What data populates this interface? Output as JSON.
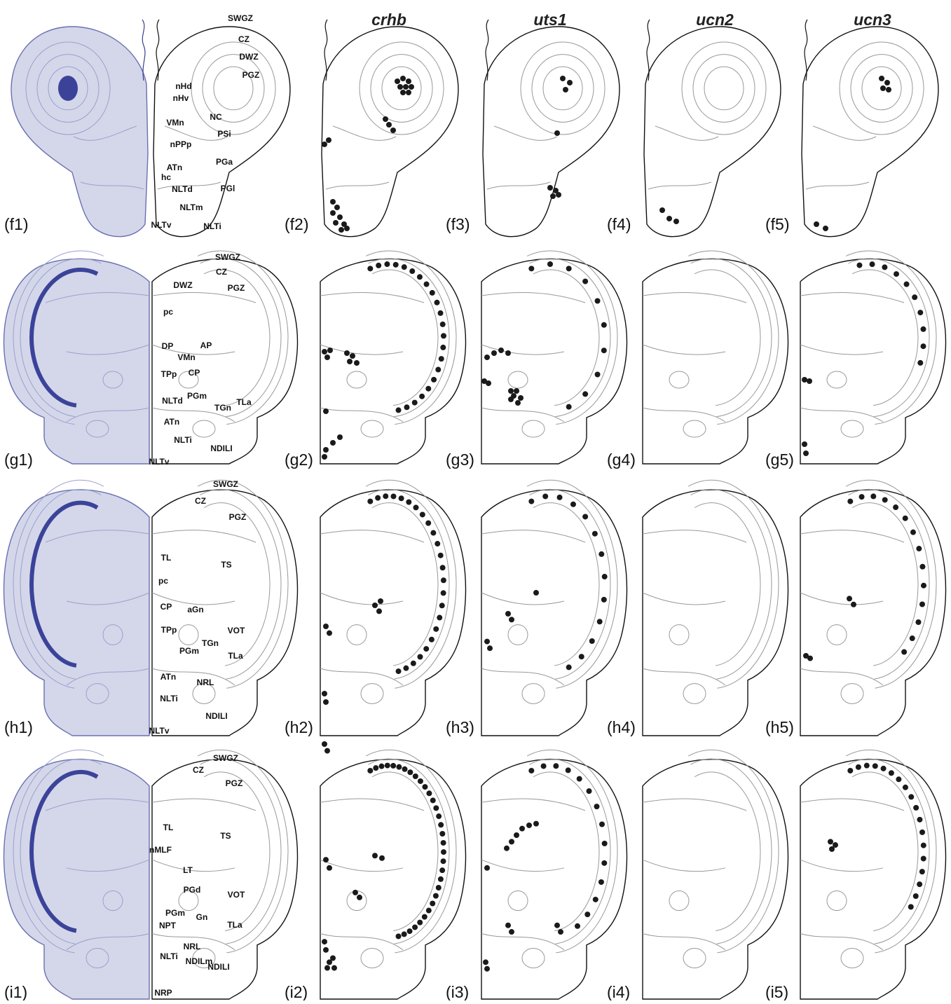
{
  "headers": [
    "crhb",
    "uts1",
    "ucn2",
    "ucn3"
  ],
  "rows": [
    {
      "panels": [
        "(f1)",
        "(f2)",
        "(f3)",
        "(f4)",
        "(f5)"
      ],
      "regions": [
        "SWGZ",
        "CZ",
        "DWZ",
        "PGZ",
        "nHd",
        "nHv",
        "NC",
        "VMn",
        "PSi",
        "nPPp",
        "PGa",
        "ATn",
        "hc",
        "NLTd",
        "PGl",
        "NLTm",
        "NLTv",
        "NLTi"
      ]
    },
    {
      "panels": [
        "(g1)",
        "(g2)",
        "(g3)",
        "(g4)",
        "(g5)"
      ],
      "regions": [
        "SWGZ",
        "CZ",
        "DWZ",
        "PGZ",
        "pc",
        "AP",
        "DP",
        "VMn",
        "CP",
        "TPp",
        "PGm",
        "NLTd",
        "TGn",
        "TLa",
        "ATn",
        "NLTi",
        "NDILI",
        "NLTv"
      ]
    },
    {
      "panels": [
        "(h1)",
        "(h2)",
        "(h3)",
        "(h4)",
        "(h5)"
      ],
      "regions": [
        "SWGZ",
        "CZ",
        "PGZ",
        "TL",
        "TS",
        "pc",
        "CP",
        "aGn",
        "VOT",
        "TPp",
        "TGn",
        "PGm",
        "TLa",
        "ATn",
        "NRL",
        "NLTi",
        "NDILI",
        "NLTv"
      ]
    },
    {
      "panels": [
        "(i1)",
        "(i2)",
        "(i3)",
        "(i4)",
        "(i5)"
      ],
      "regions": [
        "SWGZ",
        "CZ",
        "PGZ",
        "TL",
        "TS",
        "nMLF",
        "LT",
        "PGd",
        "VOT",
        "PGm",
        "Gn",
        "NPT",
        "TLa",
        "NRL",
        "NLTi",
        "NDILm",
        "NDILI",
        "NRP"
      ]
    }
  ]
}
